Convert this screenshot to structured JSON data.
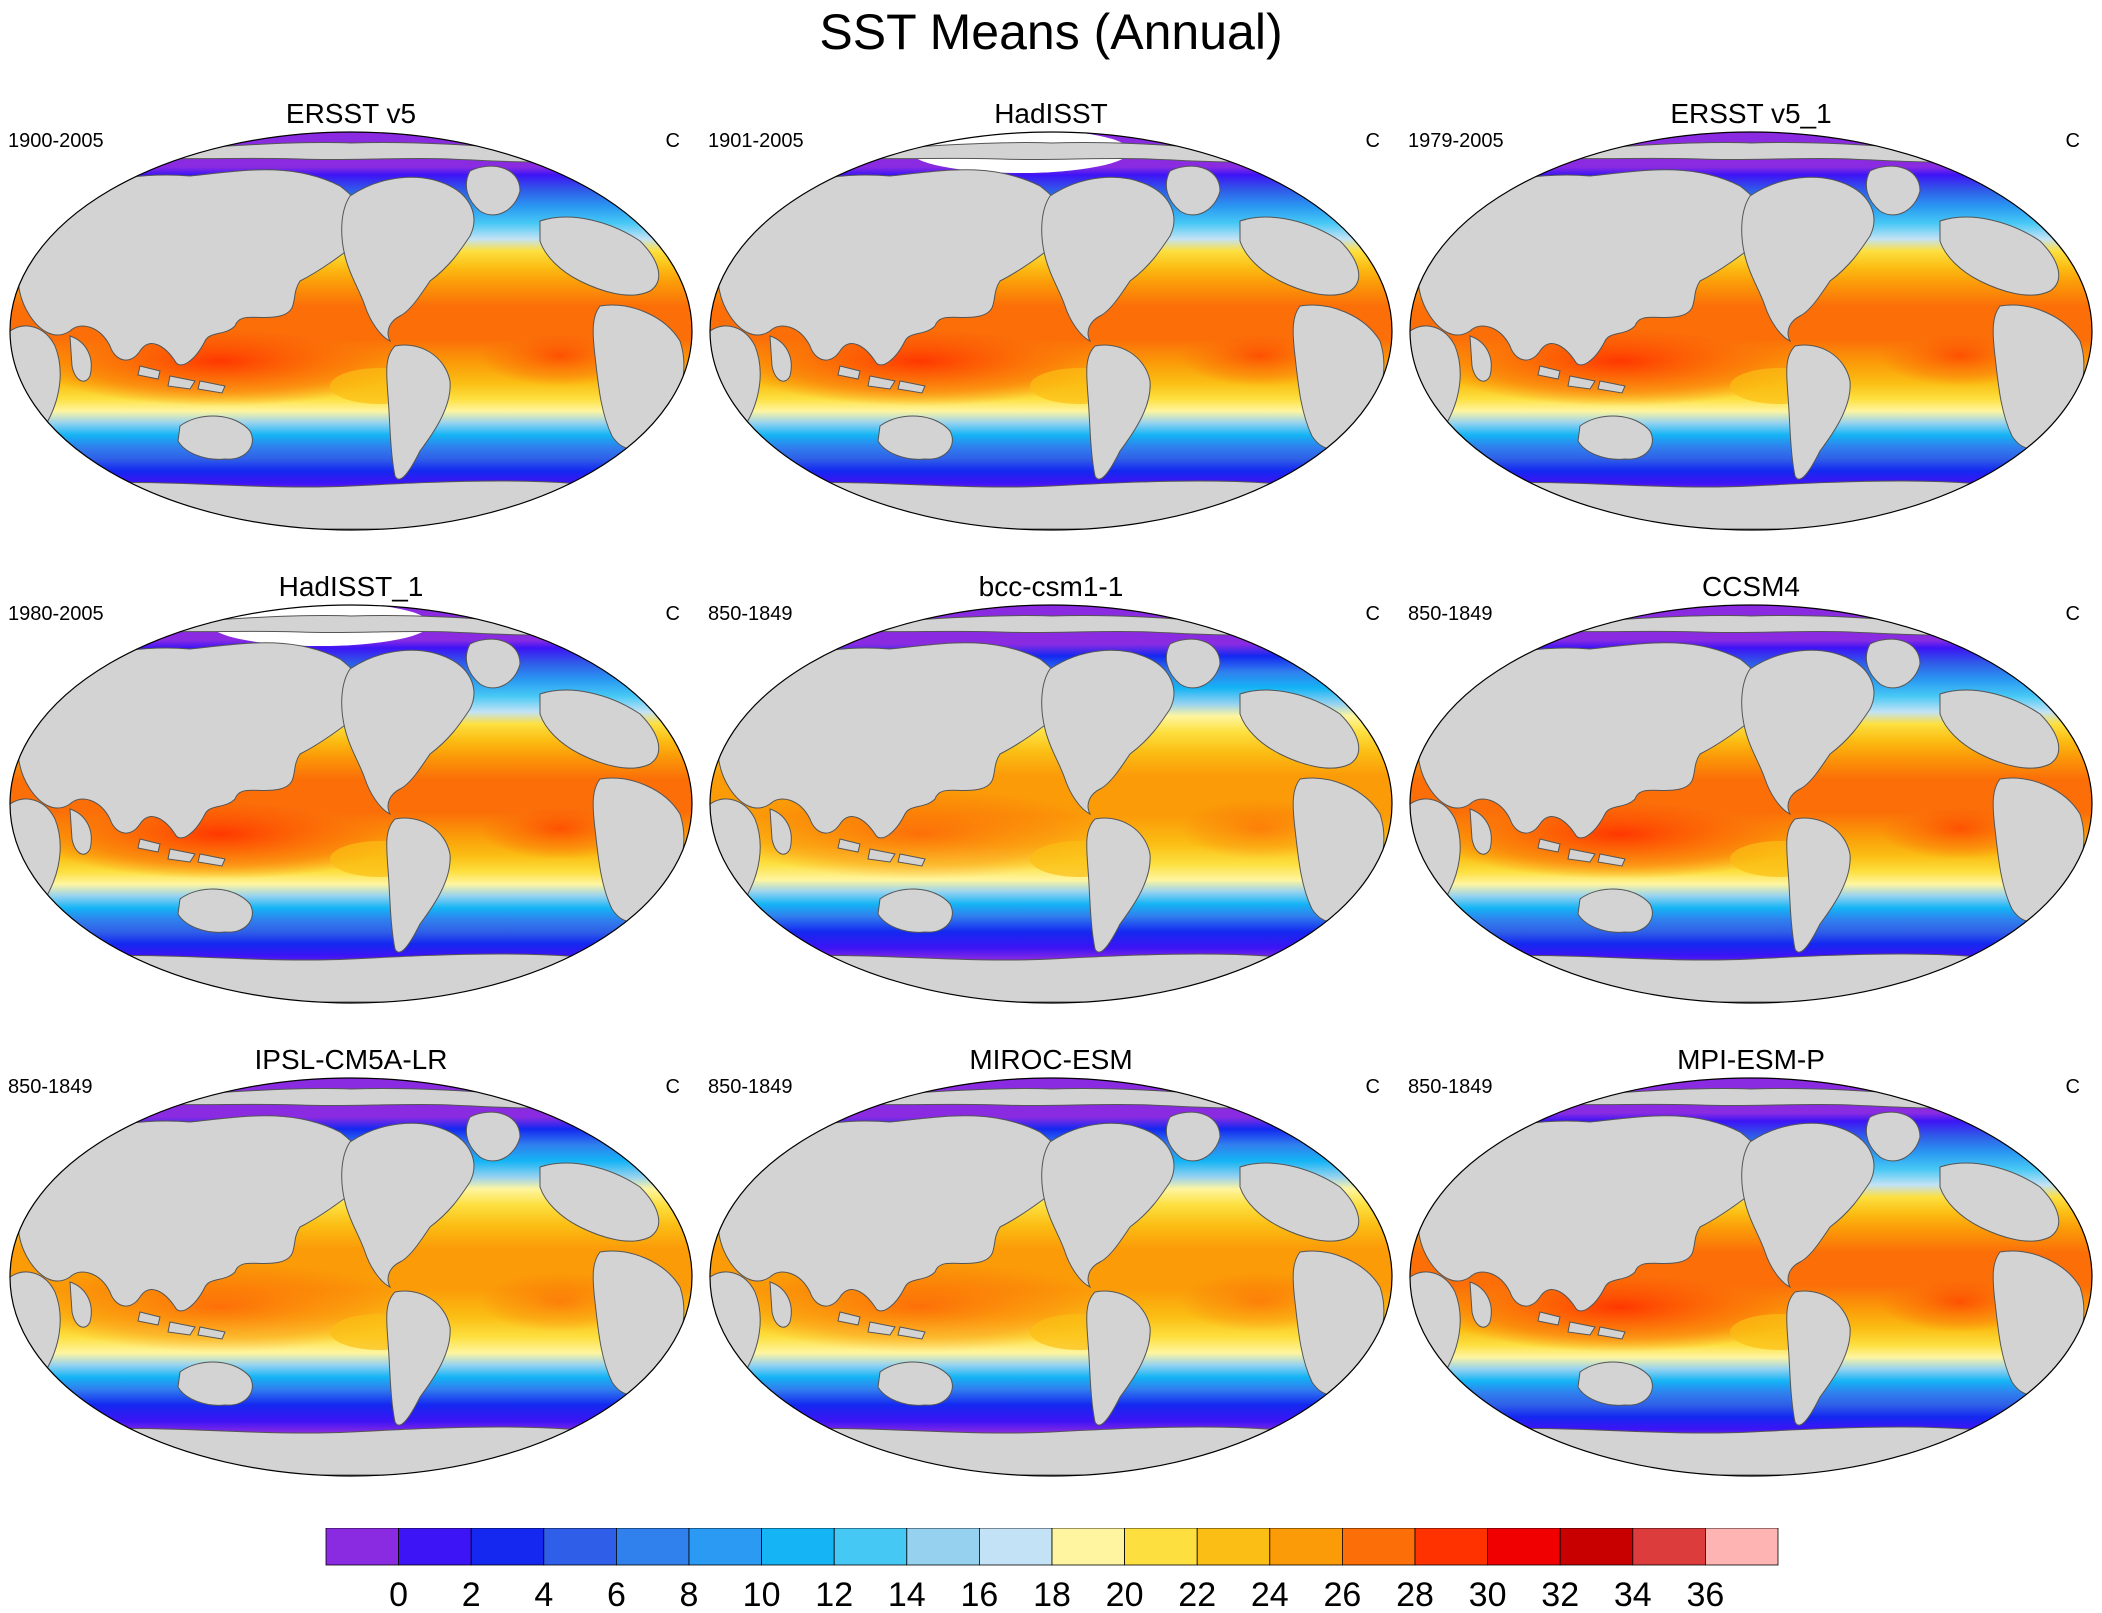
{
  "title": "SST Means (Annual)",
  "units_label": "C",
  "panels": [
    {
      "title": "ERSST v5",
      "period": "1900-2005",
      "variant": "obs"
    },
    {
      "title": "HadISST",
      "period": "1901-2005",
      "variant": "obs-ice"
    },
    {
      "title": "ERSST v5_1",
      "period": "1979-2005",
      "variant": "obs"
    },
    {
      "title": "HadISST_1",
      "period": "1980-2005",
      "variant": "obs-ice"
    },
    {
      "title": "bcc-csm1-1",
      "period": "850-1849",
      "variant": "model"
    },
    {
      "title": "CCSM4",
      "period": "850-1849",
      "variant": "model-warm"
    },
    {
      "title": "IPSL-CM5A-LR",
      "period": "850-1849",
      "variant": "model"
    },
    {
      "title": "MIROC-ESM",
      "period": "850-1849",
      "variant": "model"
    },
    {
      "title": "MPI-ESM-P",
      "period": "850-1849",
      "variant": "model-warm"
    }
  ],
  "colorbar": {
    "tick_labels": [
      "0",
      "2",
      "4",
      "6",
      "8",
      "10",
      "12",
      "14",
      "16",
      "18",
      "20",
      "22",
      "24",
      "26",
      "28",
      "30",
      "32",
      "34",
      "36"
    ],
    "colors": [
      "#8a2be2",
      "#3d14f5",
      "#1428f0",
      "#2f5fe8",
      "#3080ee",
      "#2a9af2",
      "#14b4f5",
      "#46c8f5",
      "#96d2f0",
      "#c3e2f5",
      "#fff5a0",
      "#fde040",
      "#fbbe14",
      "#fb9b08",
      "#fb6e08",
      "#ff3200",
      "#f00000",
      "#c80000",
      "#dc3c3c",
      "#ffb4b4"
    ]
  },
  "chart_data": {
    "type": "heatmap",
    "title": "SST Means (Annual)",
    "units": "C",
    "levels": [
      0,
      2,
      4,
      6,
      8,
      10,
      12,
      14,
      16,
      18,
      20,
      22,
      24,
      26,
      28,
      30,
      32,
      34,
      36
    ],
    "datasets": [
      {
        "name": "ERSST v5",
        "period": "1900-2005"
      },
      {
        "name": "HadISST",
        "period": "1901-2005"
      },
      {
        "name": "ERSST v5_1",
        "period": "1979-2005"
      },
      {
        "name": "HadISST_1",
        "period": "1980-2005"
      },
      {
        "name": "bcc-csm1-1",
        "period": "850-1849"
      },
      {
        "name": "CCSM4",
        "period": "850-1849"
      },
      {
        "name": "IPSL-CM5A-LR",
        "period": "850-1849"
      },
      {
        "name": "MIROC-ESM",
        "period": "850-1849"
      },
      {
        "name": "MPI-ESM-P",
        "period": "850-1849"
      }
    ]
  }
}
